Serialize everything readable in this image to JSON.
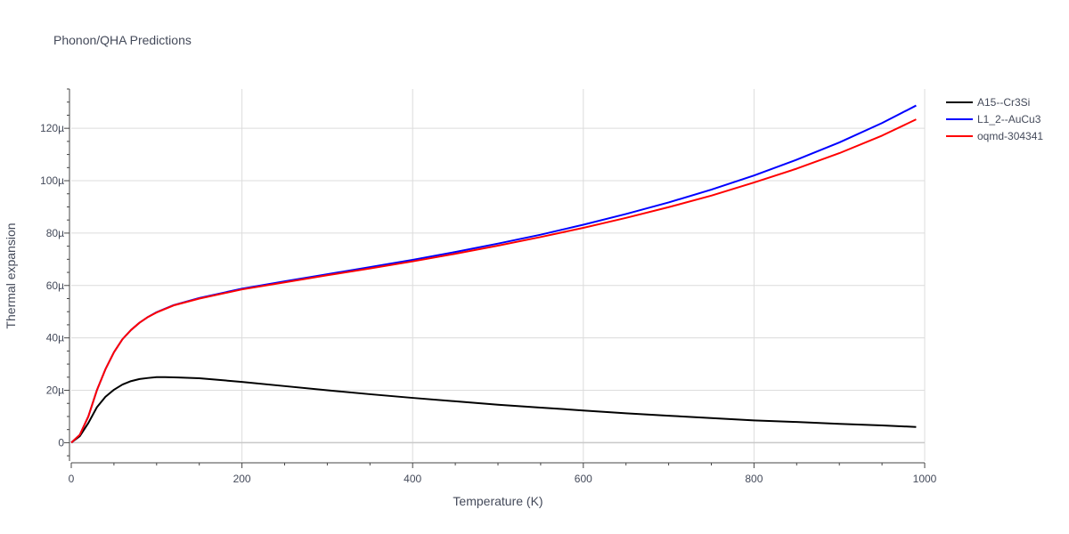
{
  "chart_data": {
    "type": "line",
    "title": "Phonon/QHA Predictions",
    "xlabel": "Temperature (K)",
    "ylabel": "Thermal expansion",
    "xlim": [
      0,
      1000
    ],
    "ylim": [
      -7e-06,
      0.000135
    ],
    "x_ticks": [
      0,
      200,
      400,
      600,
      800,
      1000
    ],
    "x_tick_labels": [
      "0",
      "200",
      "400",
      "600",
      "800",
      "1000"
    ],
    "y_ticks": [
      0,
      2e-05,
      4e-05,
      6e-05,
      8e-05,
      0.0001,
      0.00012
    ],
    "y_tick_labels": [
      "0",
      "20µ",
      "40µ",
      "60µ",
      "80µ",
      "100µ",
      "120µ"
    ],
    "grid": true,
    "legend_position": "top-right",
    "series": [
      {
        "name": "A15--Cr3Si",
        "color": "#000000",
        "x": [
          0,
          10,
          20,
          30,
          40,
          50,
          60,
          70,
          80,
          90,
          100,
          110,
          125,
          150,
          200,
          250,
          300,
          350,
          400,
          450,
          500,
          550,
          600,
          650,
          700,
          750,
          800,
          850,
          900,
          950,
          990
        ],
        "y": [
          0,
          2.5e-06,
          7.5e-06,
          1.35e-05,
          1.75e-05,
          2.02e-05,
          2.22e-05,
          2.35e-05,
          2.43e-05,
          2.47e-05,
          2.5e-05,
          2.5e-05,
          2.49e-05,
          2.46e-05,
          2.32e-05,
          2.16e-05,
          2e-05,
          1.85e-05,
          1.71e-05,
          1.58e-05,
          1.45e-05,
          1.34e-05,
          1.23e-05,
          1.12e-05,
          1.03e-05,
          9.4e-06,
          8.5e-06,
          7.9e-06,
          7.2e-06,
          6.6e-06,
          6e-06
        ]
      },
      {
        "name": "L1_2--AuCu3",
        "color": "#0000ff",
        "x": [
          0,
          10,
          20,
          30,
          40,
          50,
          60,
          70,
          80,
          90,
          100,
          120,
          150,
          200,
          250,
          300,
          350,
          400,
          450,
          500,
          550,
          600,
          650,
          700,
          750,
          800,
          850,
          900,
          950,
          990
        ],
        "y": [
          0,
          3e-06,
          1e-05,
          2e-05,
          2.8e-05,
          3.45e-05,
          3.95e-05,
          4.3e-05,
          4.58e-05,
          4.8e-05,
          4.98e-05,
          5.25e-05,
          5.52e-05,
          5.88e-05,
          6.16e-05,
          6.43e-05,
          6.7e-05,
          6.98e-05,
          7.28e-05,
          7.6e-05,
          7.94e-05,
          8.32e-05,
          8.73e-05,
          9.17e-05,
          9.66e-05,
          0.000102,
          0.000108,
          0.0001146,
          0.000122,
          0.0001287
        ]
      },
      {
        "name": "oqmd-304341",
        "color": "#ff0000",
        "x": [
          0,
          10,
          20,
          30,
          40,
          50,
          60,
          70,
          80,
          90,
          100,
          120,
          150,
          200,
          250,
          300,
          350,
          400,
          450,
          500,
          550,
          600,
          650,
          700,
          750,
          800,
          850,
          900,
          950,
          990
        ],
        "y": [
          0,
          3e-06,
          1e-05,
          2e-05,
          2.8e-05,
          3.45e-05,
          3.95e-05,
          4.3e-05,
          4.58e-05,
          4.8e-05,
          4.97e-05,
          5.24e-05,
          5.5e-05,
          5.85e-05,
          6.12e-05,
          6.39e-05,
          6.65e-05,
          6.92e-05,
          7.21e-05,
          7.52e-05,
          7.85e-05,
          8.2e-05,
          8.58e-05,
          8.99e-05,
          9.43e-05,
          9.93e-05,
          0.0001046,
          0.0001105,
          0.0001172,
          0.0001234
        ]
      }
    ]
  }
}
